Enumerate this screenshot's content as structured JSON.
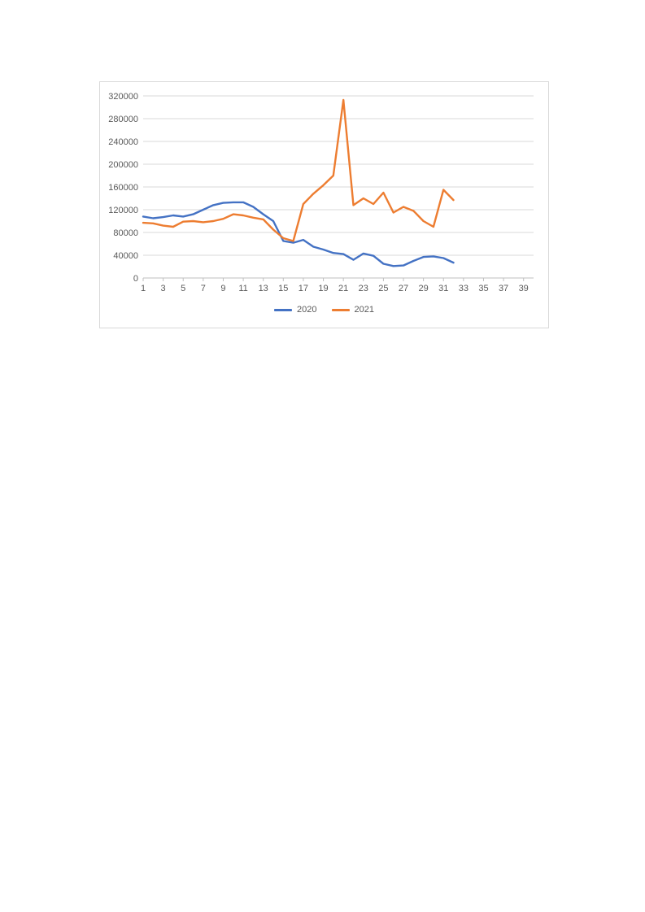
{
  "chart_data": {
    "type": "line",
    "title": "",
    "xlabel": "",
    "ylabel": "",
    "grid": true,
    "legend_position": "bottom",
    "xlim": [
      1,
      40
    ],
    "ylim": [
      0,
      320000
    ],
    "ytick_step": 40000,
    "xticks": [
      1,
      3,
      5,
      7,
      9,
      11,
      13,
      15,
      17,
      19,
      21,
      23,
      25,
      27,
      29,
      31,
      33,
      35,
      37,
      39
    ],
    "x": [
      1,
      2,
      3,
      4,
      5,
      6,
      7,
      8,
      9,
      10,
      11,
      12,
      13,
      14,
      15,
      16,
      17,
      18,
      19,
      20,
      21,
      22,
      23,
      24,
      25,
      26,
      27,
      28,
      29,
      30,
      31,
      32
    ],
    "series": [
      {
        "name": "2020",
        "color": "#4472c4",
        "values": [
          108000,
          105000,
          107000,
          110000,
          108000,
          112000,
          120000,
          128000,
          132000,
          133000,
          133000,
          125000,
          112000,
          100000,
          65000,
          62000,
          67000,
          55000,
          50000,
          44000,
          42000,
          32000,
          43000,
          39000,
          25000,
          21000,
          22000,
          30000,
          37000,
          38000,
          35000,
          27000
        ]
      },
      {
        "name": "2021",
        "color": "#ed7d31",
        "values": [
          97000,
          96000,
          92000,
          90000,
          99000,
          100000,
          98000,
          100000,
          104000,
          112000,
          110000,
          106000,
          103000,
          85000,
          70000,
          65000,
          130000,
          148000,
          163000,
          180000,
          313000,
          128000,
          140000,
          130000,
          150000,
          115000,
          125000,
          118000,
          100000,
          90000,
          155000,
          137000
        ]
      }
    ]
  },
  "axis": {
    "ytick_labels": [
      "0",
      "40000",
      "80000",
      "120000",
      "160000",
      "200000",
      "240000",
      "280000",
      "320000"
    ]
  },
  "colors": {
    "gridline": "#d9d9d9",
    "axis_line": "#bfbfbf",
    "tick": "#bfbfbf",
    "label_text": "#595959",
    "chart_border": "#d9d9d9"
  }
}
